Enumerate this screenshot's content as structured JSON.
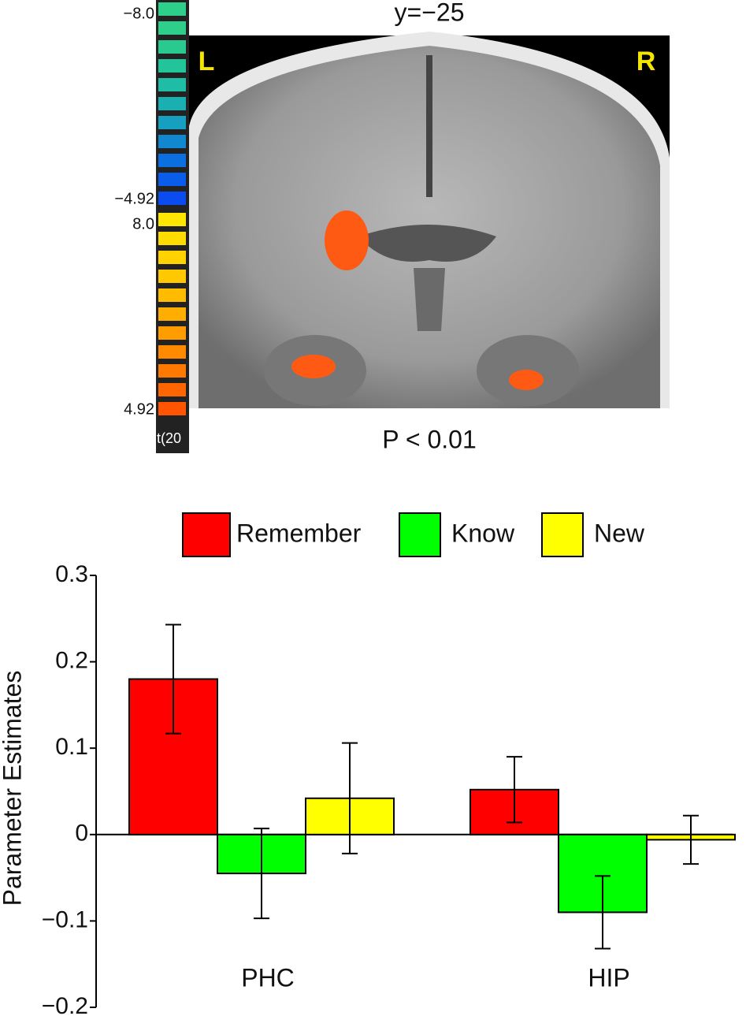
{
  "brain_image": {
    "slice_label": "y=−25",
    "left_label": "L",
    "right_label": "R",
    "threshold_label": "P < 0.01",
    "colorbar_labels": [
      "−8.0",
      "−4.92",
      "8.0",
      "4.92"
    ],
    "colorbar_unit": "t(20"
  },
  "chart_data": {
    "type": "bar",
    "y_label": "Parameter Estimates",
    "categories": [
      "PHC",
      "HIP"
    ],
    "series": [
      {
        "name": "Remember",
        "color": "#ff0000",
        "values": [
          0.18,
          0.052
        ],
        "errors": [
          0.063,
          0.038
        ]
      },
      {
        "name": "Know",
        "color": "#00ff00",
        "values": [
          -0.045,
          -0.09
        ],
        "errors": [
          0.052,
          0.042
        ]
      },
      {
        "name": "New",
        "color": "#ffff00",
        "values": [
          0.042,
          -0.006
        ],
        "errors": [
          0.064,
          0.028
        ]
      }
    ],
    "ylim": [
      -0.2,
      0.3
    ],
    "yticks": [
      {
        "value": -0.2,
        "label": "−0.2"
      },
      {
        "value": -0.1,
        "label": "−0.1"
      },
      0,
      0.1,
      0.2,
      0.3
    ],
    "legend": "top"
  }
}
